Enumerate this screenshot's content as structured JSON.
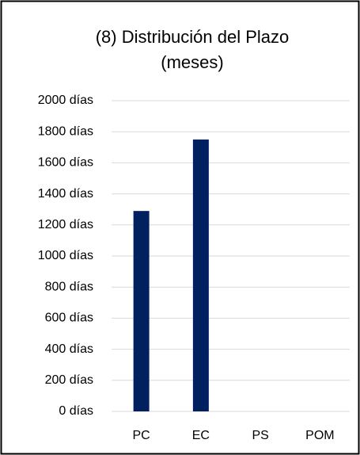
{
  "chart_data": {
    "type": "bar",
    "title": [
      "(8) Distribución del Plazo",
      "(meses)"
    ],
    "categories": [
      "PC",
      "EC",
      "PS",
      "POM"
    ],
    "values": [
      1290,
      1750,
      0,
      0
    ],
    "color": "#002060",
    "ylim": [
      0,
      2000
    ],
    "yticks": [
      {
        "value": 0,
        "label": "0 días"
      },
      {
        "value": 200,
        "label": "200 días"
      },
      {
        "value": 400,
        "label": "400 días"
      },
      {
        "value": 600,
        "label": "600 días"
      },
      {
        "value": 800,
        "label": "800 días"
      },
      {
        "value": 1000,
        "label": "1000 días"
      },
      {
        "value": 1200,
        "label": "1200 días"
      },
      {
        "value": 1400,
        "label": "1400 días"
      },
      {
        "value": 1600,
        "label": "1600 días"
      },
      {
        "value": 1800,
        "label": "1800 días"
      },
      {
        "value": 2000,
        "label": "2000 días"
      }
    ],
    "grid": true
  }
}
